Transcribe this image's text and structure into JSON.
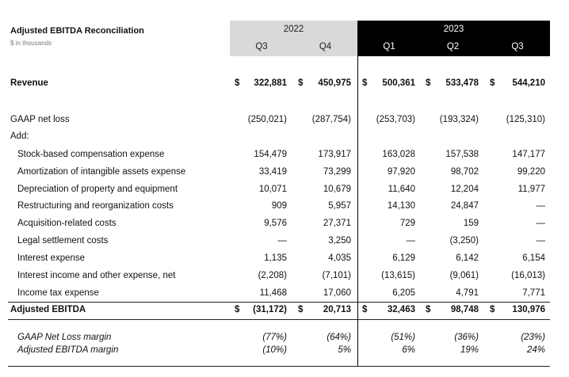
{
  "header": {
    "title": "Adjusted EBITDA Reconciliation",
    "subtitle": "$ in thousands",
    "years": [
      {
        "label": "2022",
        "quarters": [
          "Q3",
          "Q4"
        ]
      },
      {
        "label": "2023",
        "quarters": [
          "Q1",
          "Q2",
          "Q3"
        ]
      }
    ]
  },
  "table": {
    "rows": [
      {
        "label": "Revenue",
        "style": "bold",
        "cells": [
          {
            "symbol": "$",
            "text": "322,881"
          },
          {
            "symbol": "$",
            "text": "450,975"
          },
          {
            "symbol": "$",
            "text": "500,361"
          },
          {
            "symbol": "$",
            "text": "533,478"
          },
          {
            "symbol": "$",
            "text": "544,210"
          }
        ]
      },
      {
        "label": "GAAP net loss",
        "cells": [
          "(250,021)",
          "(287,754)",
          "(253,703)",
          "(193,324)",
          "(125,310)"
        ]
      },
      {
        "label": "Add:",
        "cells": []
      },
      {
        "label": "Stock-based compensation expense",
        "indent": true,
        "cells": [
          "154,479",
          "173,917",
          "163,028",
          "157,538",
          "147,177"
        ]
      },
      {
        "label": "Amortization of intangible assets expense",
        "indent": true,
        "cells": [
          "33,419",
          "73,299",
          "97,920",
          "98,702",
          "99,220"
        ]
      },
      {
        "label": "Depreciation of property and equipment",
        "indent": true,
        "cells": [
          "10,071",
          "10,679",
          "11,640",
          "12,204",
          "11,977"
        ]
      },
      {
        "label": "Restructuring and reorganization costs",
        "indent": true,
        "cells": [
          "909",
          "5,957",
          "14,130",
          "24,847",
          "—"
        ]
      },
      {
        "label": "Acquisition-related costs",
        "indent": true,
        "cells": [
          "9,576",
          "27,371",
          "729",
          "159",
          "—"
        ]
      },
      {
        "label": "Legal settlement costs",
        "indent": true,
        "cells": [
          "—",
          "3,250",
          "—",
          "(3,250)",
          "—"
        ]
      },
      {
        "label": "Interest expense",
        "indent": true,
        "cells": [
          "1,135",
          "4,035",
          "6,129",
          "6,142",
          "6,154"
        ]
      },
      {
        "label": "Interest income and other expense, net",
        "indent": true,
        "cells": [
          "(2,208)",
          "(7,101)",
          "(13,615)",
          "(9,061)",
          "(16,013)"
        ]
      },
      {
        "label": "Income tax expense",
        "indent": true,
        "cells": [
          "11,468",
          "17,060",
          "6,205",
          "4,791",
          "7,771"
        ]
      },
      {
        "label": "Adjusted EBITDA",
        "style": "bold",
        "cells": [
          {
            "symbol": "$",
            "text": "(31,172)"
          },
          {
            "symbol": "$",
            "text": "20,713"
          },
          {
            "symbol": "$",
            "text": "32,463"
          },
          {
            "symbol": "$",
            "text": "98,748"
          },
          {
            "symbol": "$",
            "text": "130,976"
          }
        ]
      },
      {
        "label": "GAAP Net Loss margin",
        "style": "italic",
        "indent": true,
        "cells": [
          "(77%)",
          "(64%)",
          "(51%)",
          "(36%)",
          "(23%)"
        ]
      },
      {
        "label": "Adjusted EBITDA margin",
        "style": "italic",
        "indent": true,
        "cells": [
          "(10%)",
          "5%",
          "6%",
          "19%",
          "24%"
        ]
      }
    ]
  }
}
